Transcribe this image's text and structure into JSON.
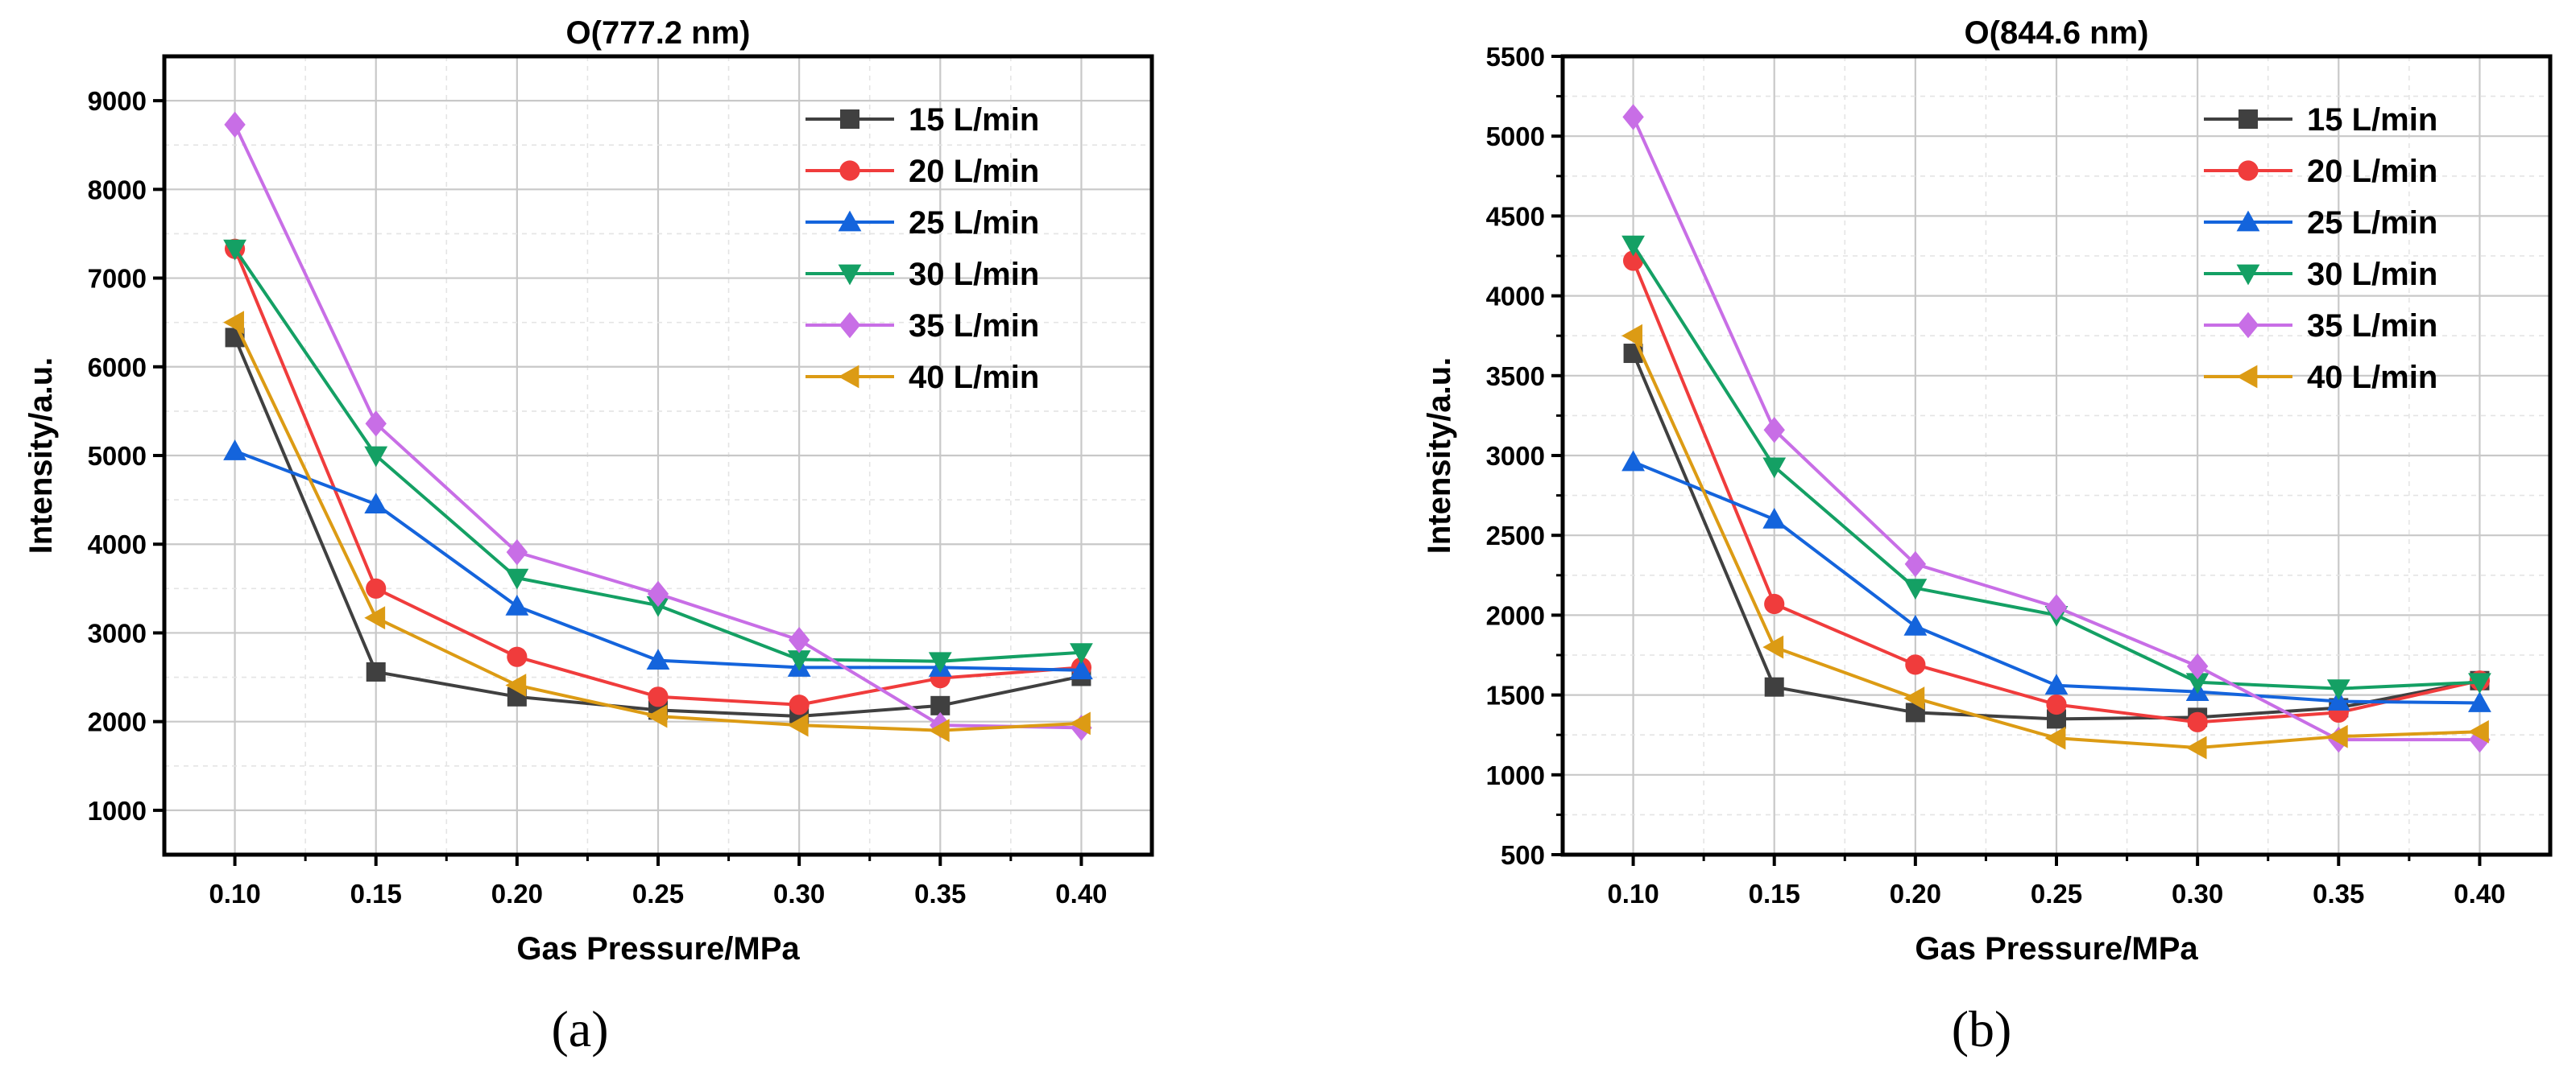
{
  "chart_data": [
    {
      "type": "line",
      "title": "O(777.2 nm)",
      "caption": "(a)",
      "xlabel": "Gas Pressure/MPa",
      "ylabel": "Intensity/a.u.",
      "x": [
        0.1,
        0.15,
        0.2,
        0.25,
        0.3,
        0.35,
        0.4
      ],
      "x_tick_labels": [
        "0.10",
        "0.15",
        "0.20",
        "0.25",
        "0.30",
        "0.35",
        "0.40"
      ],
      "xlim": [
        0.075,
        0.425
      ],
      "ylim": [
        500,
        9500
      ],
      "y_ticks": [
        1000,
        2000,
        3000,
        4000,
        5000,
        6000,
        7000,
        8000,
        9000
      ],
      "y_tick_labels": [
        "1000",
        "2000",
        "3000",
        "4000",
        "5000",
        "6000",
        "7000",
        "8000",
        "9000"
      ],
      "grid": true,
      "legend_position": "top-right",
      "series": [
        {
          "name": "15 L/min",
          "color": "#404040",
          "marker": "square",
          "values": [
            6330,
            2560,
            2280,
            2130,
            2060,
            2180,
            2510
          ]
        },
        {
          "name": "20 L/min",
          "color": "#f03c3c",
          "marker": "circle",
          "values": [
            7330,
            3500,
            2730,
            2280,
            2190,
            2490,
            2610
          ]
        },
        {
          "name": "25 L/min",
          "color": "#1464dc",
          "marker": "triangle-up",
          "values": [
            5050,
            4450,
            3300,
            2690,
            2610,
            2610,
            2580
          ]
        },
        {
          "name": "30 L/min",
          "color": "#14a064",
          "marker": "triangle-down",
          "values": [
            7330,
            5000,
            3620,
            3310,
            2700,
            2680,
            2780
          ]
        },
        {
          "name": "35 L/min",
          "color": "#c86ee6",
          "marker": "diamond",
          "values": [
            8730,
            5360,
            3910,
            3440,
            2920,
            1960,
            1930
          ]
        },
        {
          "name": "40 L/min",
          "color": "#dc9b14",
          "marker": "triangle-left",
          "values": [
            6500,
            3170,
            2410,
            2060,
            1960,
            1900,
            1980
          ]
        }
      ]
    },
    {
      "type": "line",
      "title": "O(844.6 nm)",
      "caption": "(b)",
      "xlabel": "Gas Pressure/MPa",
      "ylabel": "Intensity/a.u.",
      "x": [
        0.1,
        0.15,
        0.2,
        0.25,
        0.3,
        0.35,
        0.4
      ],
      "x_tick_labels": [
        "0.10",
        "0.15",
        "0.20",
        "0.25",
        "0.30",
        "0.35",
        "0.40"
      ],
      "xlim": [
        0.075,
        0.425
      ],
      "ylim": [
        500,
        5500
      ],
      "y_ticks": [
        500,
        1000,
        1500,
        2000,
        2500,
        3000,
        3500,
        4000,
        4500,
        5000,
        5500
      ],
      "y_tick_labels": [
        "500",
        "1000",
        "1500",
        "2000",
        "2500",
        "3000",
        "3500",
        "4000",
        "4500",
        "5000",
        "5500"
      ],
      "grid": true,
      "legend_position": "top-right",
      "series": [
        {
          "name": "15 L/min",
          "color": "#404040",
          "marker": "square",
          "values": [
            3640,
            1550,
            1390,
            1350,
            1360,
            1420,
            1590
          ]
        },
        {
          "name": "20 L/min",
          "color": "#f03c3c",
          "marker": "circle",
          "values": [
            4220,
            2070,
            1690,
            1440,
            1330,
            1390,
            1590
          ]
        },
        {
          "name": "25 L/min",
          "color": "#1464dc",
          "marker": "triangle-up",
          "values": [
            2960,
            2600,
            1930,
            1560,
            1520,
            1460,
            1450
          ]
        },
        {
          "name": "30 L/min",
          "color": "#14a064",
          "marker": "triangle-down",
          "values": [
            4320,
            2930,
            2170,
            2000,
            1580,
            1540,
            1580
          ]
        },
        {
          "name": "35 L/min",
          "color": "#c86ee6",
          "marker": "diamond",
          "values": [
            5120,
            3160,
            2320,
            2050,
            1680,
            1220,
            1220
          ]
        },
        {
          "name": "40 L/min",
          "color": "#dc9b14",
          "marker": "triangle-left",
          "values": [
            3750,
            1800,
            1480,
            1230,
            1170,
            1240,
            1270
          ]
        }
      ]
    }
  ]
}
